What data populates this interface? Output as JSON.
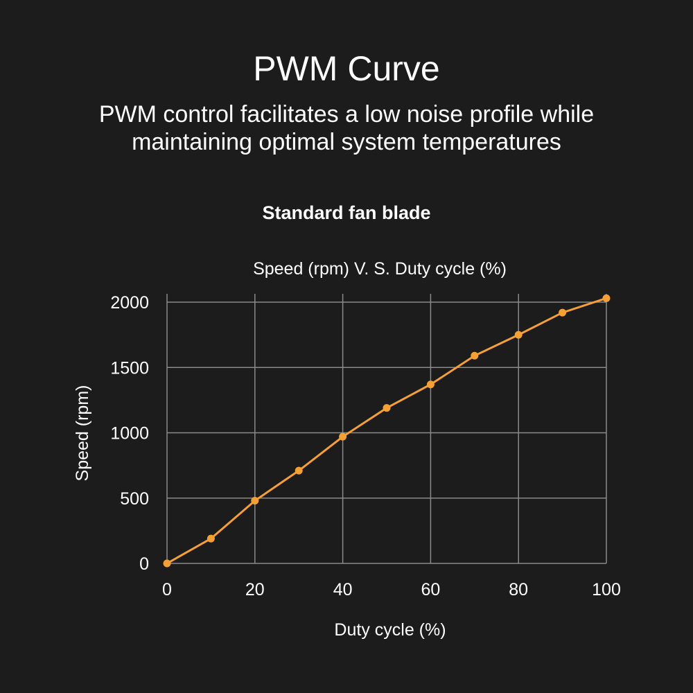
{
  "header": {
    "title": "PWM Curve",
    "subtitle_line1": "PWM control facilitates a low noise profile while",
    "subtitle_line2": "maintaining optimal system temperatures"
  },
  "chart_data": {
    "type": "line",
    "heading": "Standard fan blade",
    "title": "Speed (rpm) V. S. Duty cycle (%)",
    "xlabel": "Duty cycle (%)",
    "ylabel": "Speed (rpm)",
    "xlim": [
      0,
      100
    ],
    "ylim": [
      0,
      2000
    ],
    "xticks": [
      0,
      20,
      40,
      60,
      80,
      100
    ],
    "yticks": [
      0,
      500,
      1000,
      1500,
      2000
    ],
    "grid": true,
    "x": [
      0,
      10,
      20,
      30,
      40,
      50,
      60,
      70,
      80,
      90,
      100
    ],
    "series": [
      {
        "values": [
          0,
          190,
          480,
          710,
          970,
          1190,
          1370,
          1590,
          1750,
          1920,
          2030
        ],
        "color": "#f5a030"
      }
    ],
    "colors": {
      "background": "#1c1c1c",
      "grid": "#8a8a8a",
      "line": "#f5a030"
    }
  }
}
